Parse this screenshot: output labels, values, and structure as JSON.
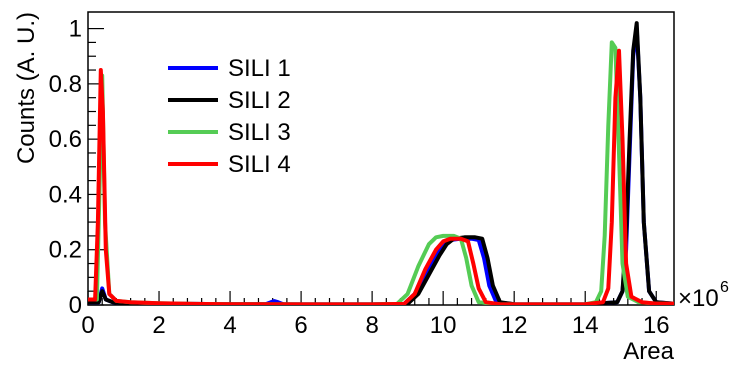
{
  "chart_data": {
    "type": "line",
    "xlabel": "Area",
    "ylabel": "Counts (A. U.)",
    "x_multiplier": "×10",
    "x_multiplier_exp": "6",
    "xlim": [
      0,
      16.5
    ],
    "ylim": [
      0,
      1.06
    ],
    "x_ticks": [
      0,
      2,
      4,
      6,
      8,
      10,
      12,
      14,
      16
    ],
    "x_tick_labels": [
      "0",
      "2",
      "4",
      "6",
      "8",
      "10",
      "12",
      "14",
      "16"
    ],
    "y_ticks": [
      0,
      0.2,
      0.4,
      0.6,
      0.8,
      1
    ],
    "y_tick_labels": [
      "0",
      "0.2",
      "0.4",
      "0.6",
      "0.8",
      "1"
    ],
    "grid": false,
    "legend_position": "top-left",
    "series": [
      {
        "name": "SILI 1",
        "color": "#0000ff",
        "x": [
          0,
          0.3,
          0.4,
          0.5,
          0.7,
          1.0,
          2,
          3,
          4,
          5,
          5.15,
          5.25,
          5.35,
          5.5,
          6,
          7,
          8,
          8.9,
          9.2,
          9.5,
          9.8,
          10.0,
          10.2,
          10.5,
          10.8,
          11.0,
          11.15,
          11.3,
          11.5,
          12,
          13,
          14,
          14.9,
          15.05,
          15.15,
          15.25,
          15.35,
          15.45,
          15.55,
          15.65,
          15.8,
          16,
          16.5
        ],
        "y": [
          0.01,
          0.01,
          0.06,
          0.02,
          0.01,
          0.006,
          0.004,
          0.004,
          0.003,
          0.003,
          0.01,
          0.014,
          0.01,
          0.003,
          0.002,
          0.002,
          0.002,
          0.004,
          0.04,
          0.11,
          0.18,
          0.22,
          0.235,
          0.24,
          0.24,
          0.235,
          0.17,
          0.07,
          0.01,
          0.003,
          0.002,
          0.002,
          0.01,
          0.05,
          0.2,
          0.55,
          0.9,
          1.0,
          0.75,
          0.3,
          0.05,
          0.01,
          0.005
        ]
      },
      {
        "name": "SILI 2",
        "color": "#000000",
        "x": [
          0,
          0.3,
          0.4,
          0.5,
          0.7,
          1.0,
          2,
          3,
          4,
          5,
          6,
          7,
          8,
          9.0,
          9.3,
          9.6,
          9.9,
          10.1,
          10.3,
          10.6,
          10.9,
          11.1,
          11.25,
          11.4,
          11.6,
          12,
          13,
          14,
          14.9,
          15.05,
          15.15,
          15.25,
          15.35,
          15.45,
          15.55,
          15.65,
          15.8,
          16,
          16.5
        ],
        "y": [
          0.01,
          0.01,
          0.05,
          0.02,
          0.01,
          0.005,
          0.003,
          0.003,
          0.003,
          0.003,
          0.002,
          0.002,
          0.002,
          0.004,
          0.04,
          0.11,
          0.18,
          0.22,
          0.24,
          0.245,
          0.245,
          0.24,
          0.17,
          0.07,
          0.01,
          0.003,
          0.002,
          0.002,
          0.01,
          0.05,
          0.25,
          0.6,
          0.92,
          1.02,
          0.75,
          0.3,
          0.05,
          0.01,
          0.005
        ]
      },
      {
        "name": "SILI 3",
        "color": "#55cc55",
        "x": [
          0,
          0.25,
          0.33,
          0.4,
          0.48,
          0.6,
          0.8,
          1.2,
          2,
          3,
          4,
          5,
          6,
          7,
          8,
          8.7,
          9.0,
          9.3,
          9.6,
          9.8,
          10.0,
          10.3,
          10.5,
          10.65,
          10.8,
          11.0,
          11.5,
          12,
          13,
          14,
          14.3,
          14.45,
          14.55,
          14.65,
          14.75,
          14.85,
          14.95,
          15.05,
          15.2,
          15.5,
          16,
          16.5
        ],
        "y": [
          0.02,
          0.02,
          0.45,
          0.83,
          0.3,
          0.04,
          0.015,
          0.01,
          0.006,
          0.004,
          0.003,
          0.003,
          0.002,
          0.002,
          0.002,
          0.004,
          0.04,
          0.14,
          0.22,
          0.245,
          0.25,
          0.25,
          0.24,
          0.17,
          0.07,
          0.01,
          0.003,
          0.002,
          0.002,
          0.003,
          0.01,
          0.05,
          0.25,
          0.65,
          0.95,
          0.93,
          0.55,
          0.15,
          0.03,
          0.01,
          0.005,
          0.005
        ]
      },
      {
        "name": "SILI 4",
        "color": "#ff0000",
        "x": [
          0,
          0.2,
          0.28,
          0.36,
          0.42,
          0.5,
          0.6,
          0.8,
          1.2,
          2,
          3,
          4,
          5,
          6,
          7,
          8,
          8.9,
          9.2,
          9.5,
          9.8,
          10.0,
          10.2,
          10.5,
          10.7,
          10.85,
          11.0,
          11.2,
          11.6,
          12,
          13,
          14,
          14.5,
          14.65,
          14.75,
          14.85,
          14.95,
          15.05,
          15.15,
          15.3,
          15.6,
          16,
          16.5
        ],
        "y": [
          0.02,
          0.02,
          0.3,
          0.85,
          0.7,
          0.2,
          0.04,
          0.015,
          0.01,
          0.006,
          0.004,
          0.003,
          0.003,
          0.002,
          0.002,
          0.002,
          0.004,
          0.04,
          0.13,
          0.2,
          0.23,
          0.24,
          0.24,
          0.23,
          0.15,
          0.06,
          0.01,
          0.003,
          0.002,
          0.002,
          0.003,
          0.01,
          0.06,
          0.3,
          0.75,
          0.92,
          0.6,
          0.15,
          0.03,
          0.01,
          0.005,
          0.005
        ]
      }
    ]
  }
}
